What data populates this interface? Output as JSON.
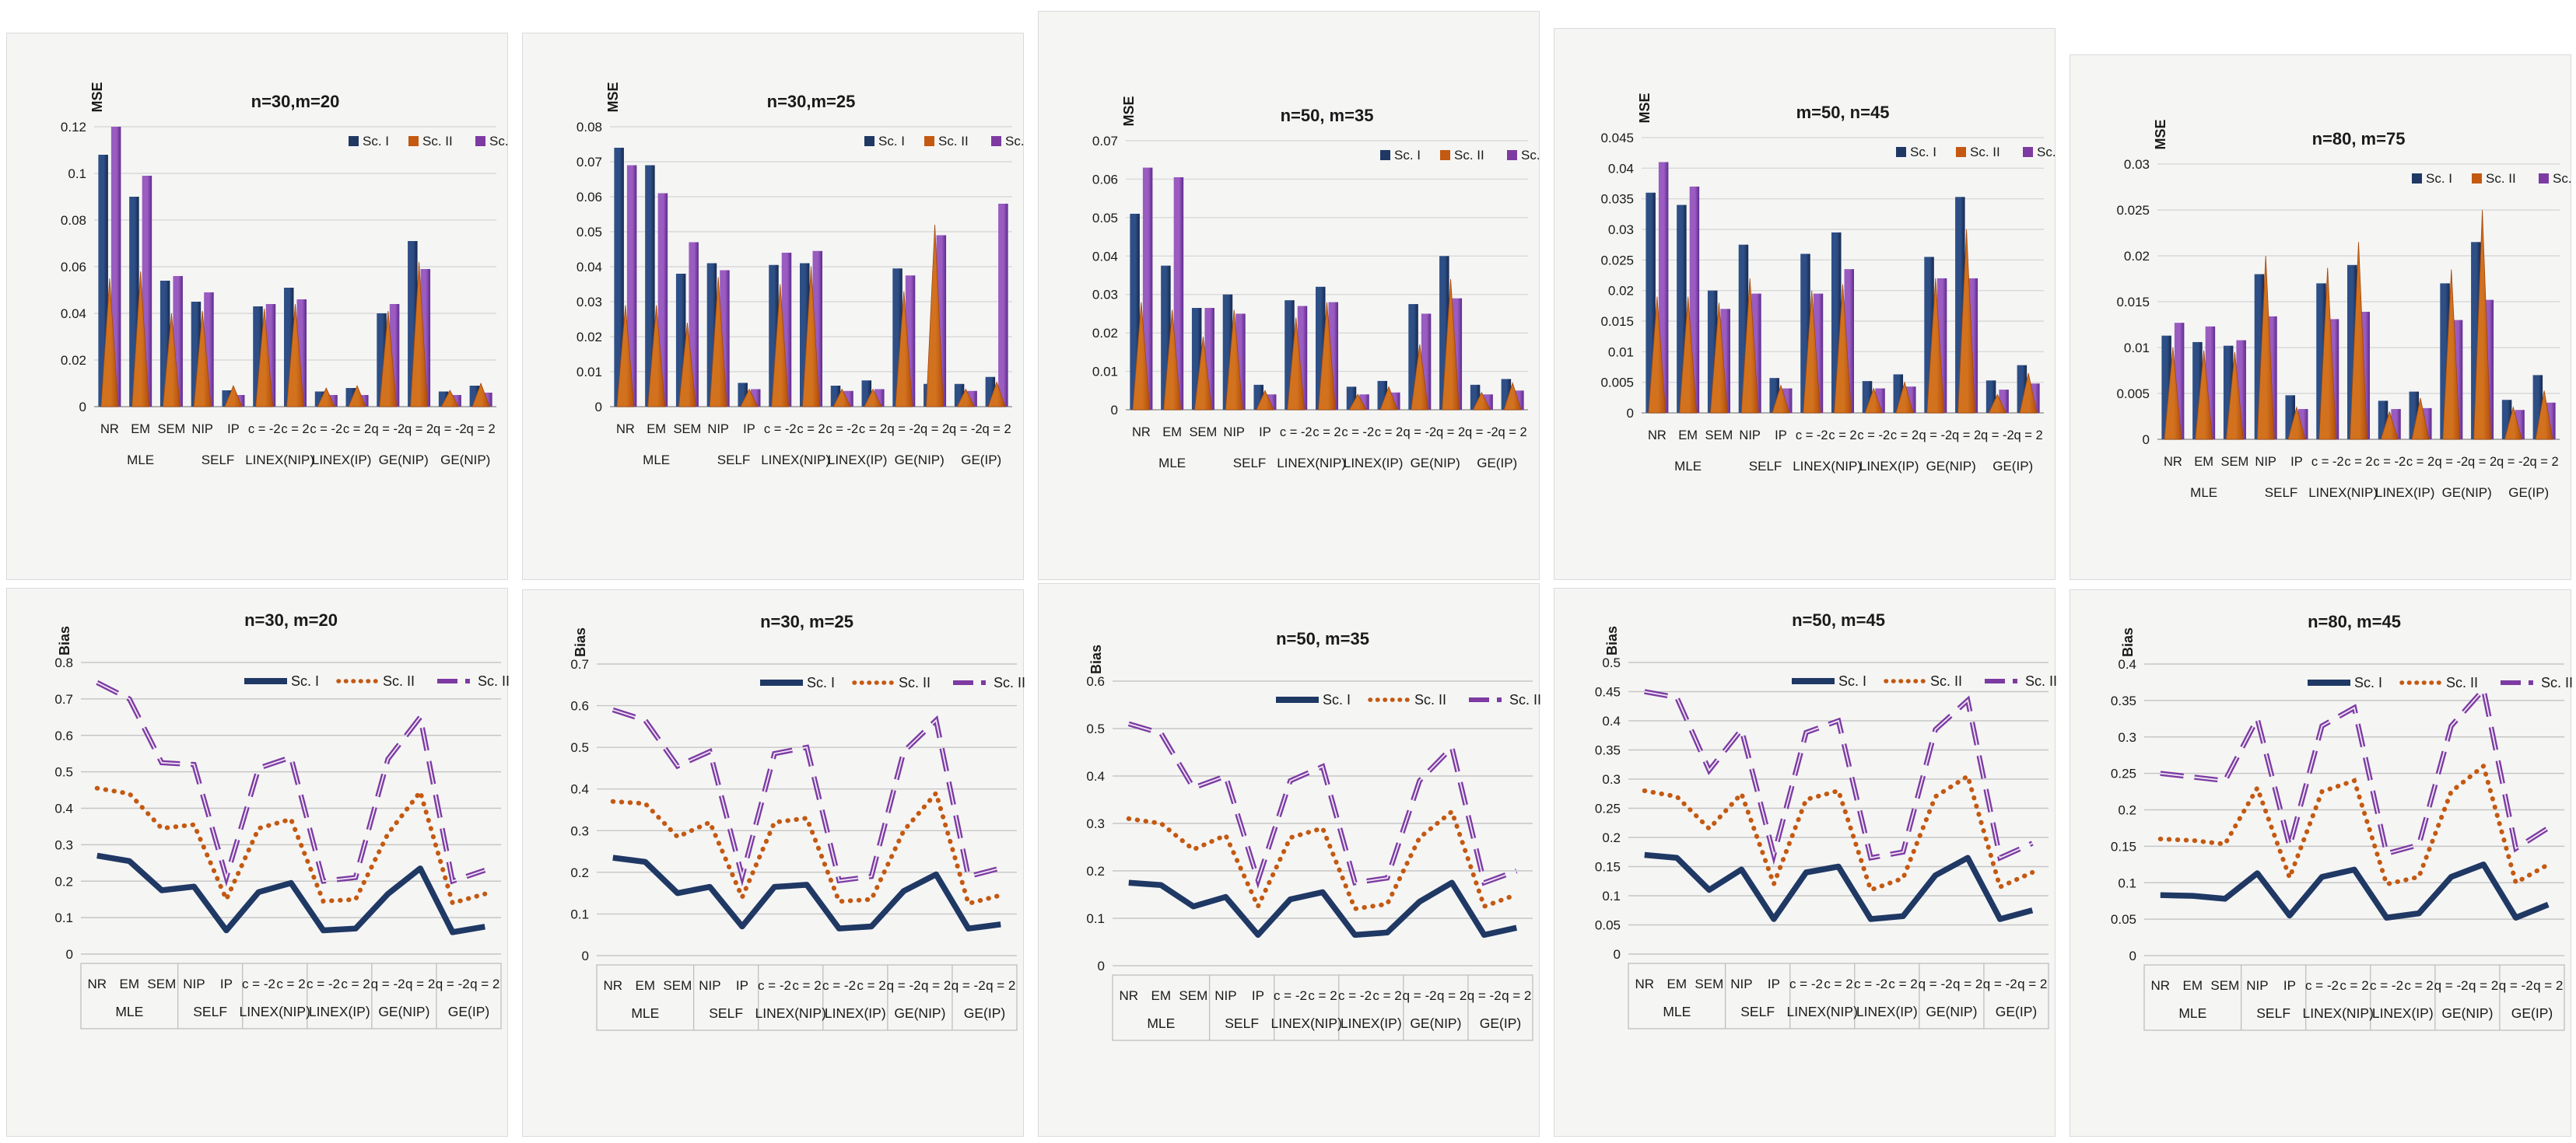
{
  "page_title": "MSE and Bias comparison charts",
  "colors": {
    "sc1_navy": "#1f3864",
    "sc2_orange": "#c45911",
    "sc3_purple": "#7d3ba2",
    "panel_bg": "#f5f5f4",
    "panel_border": "#dadada",
    "grid": "#d9d9d9",
    "grid_dark": "#c6c6c6",
    "axis_line": "#9a9a9a",
    "band_border": "#bfbfbf",
    "text": "#1a1a1a"
  },
  "legend": [
    "Sc. I",
    "Sc. II",
    "Sc. III"
  ],
  "categories": [
    "NR",
    "EM",
    "SEM",
    "NIP",
    "IP",
    "c = -2",
    "c = 2",
    "c = -2",
    "c = 2",
    "q = -2",
    "q = 2",
    "q = -2",
    "q = 2"
  ],
  "group_spans": [
    [
      0,
      2
    ],
    [
      3,
      4
    ],
    [
      5,
      6
    ],
    [
      7,
      8
    ],
    [
      9,
      10
    ],
    [
      11,
      12
    ]
  ],
  "chart_data": [
    {
      "type": "bar",
      "title": "n=30,m=20",
      "ylabel": "MSE",
      "ylim": [
        0,
        0.12
      ],
      "ystep": 0.02,
      "group_labels": [
        "MLE",
        "SELF",
        "LINEX(NIP)",
        "LINEX(IP)",
        "GE(NIP)",
        "GE(NIP)"
      ],
      "series": [
        {
          "name": "Sc. I",
          "values": [
            0.108,
            0.09,
            0.054,
            0.045,
            0.007,
            0.043,
            0.051,
            0.0065,
            0.008,
            0.04,
            0.071,
            0.0065,
            0.009
          ]
        },
        {
          "name": "Sc. II",
          "values": [
            0.055,
            0.058,
            0.04,
            0.041,
            0.009,
            0.042,
            0.044,
            0.008,
            0.009,
            0.041,
            0.062,
            0.007,
            0.01
          ]
        },
        {
          "name": "Sc. III",
          "values": [
            0.12,
            0.099,
            0.056,
            0.049,
            0.005,
            0.044,
            0.046,
            0.005,
            0.005,
            0.044,
            0.059,
            0.005,
            0.006
          ]
        }
      ]
    },
    {
      "type": "bar",
      "title": "n=30,m=25",
      "ylabel": "MSE",
      "ylim": [
        0,
        0.08
      ],
      "ystep": 0.01,
      "group_labels": [
        "MLE",
        "SELF",
        "LINEX(NIP)",
        "LINEX(IP)",
        "GE(NIP)",
        "GE(IP)"
      ],
      "series": [
        {
          "name": "Sc. I",
          "values": [
            0.074,
            0.069,
            0.038,
            0.041,
            0.0068,
            0.0405,
            0.041,
            0.006,
            0.0075,
            0.0395,
            0.0065,
            0.0065,
            0.0085
          ]
        },
        {
          "name": "Sc. II",
          "values": [
            0.029,
            0.029,
            0.024,
            0.037,
            0.005,
            0.035,
            0.04,
            0.005,
            0.005,
            0.033,
            0.052,
            0.005,
            0.007
          ]
        },
        {
          "name": "Sc. III",
          "values": [
            0.069,
            0.061,
            0.047,
            0.039,
            0.005,
            0.044,
            0.0445,
            0.0045,
            0.005,
            0.0375,
            0.049,
            0.0045,
            0.058
          ]
        }
      ]
    },
    {
      "type": "bar",
      "title": "n=50, m=35",
      "ylabel": "MSE",
      "ylim": [
        0,
        0.07
      ],
      "ystep": 0.01,
      "group_labels": [
        "MLE",
        "SELF",
        "LINEX(NIP)",
        "LINEX(IP)",
        "GE(NIP)",
        "GE(IP)"
      ],
      "series": [
        {
          "name": "Sc. I",
          "values": [
            0.051,
            0.0375,
            0.0265,
            0.03,
            0.0065,
            0.0285,
            0.032,
            0.006,
            0.0075,
            0.0275,
            0.04,
            0.0065,
            0.008
          ]
        },
        {
          "name": "Sc. II",
          "values": [
            0.028,
            0.026,
            0.019,
            0.026,
            0.005,
            0.024,
            0.028,
            0.004,
            0.006,
            0.017,
            0.034,
            0.0045,
            0.007
          ]
        },
        {
          "name": "Sc. III",
          "values": [
            0.063,
            0.0605,
            0.0265,
            0.025,
            0.004,
            0.027,
            0.028,
            0.004,
            0.0045,
            0.025,
            0.029,
            0.004,
            0.005
          ]
        }
      ]
    },
    {
      "type": "bar",
      "title": "m=50, n=45",
      "ylabel": "MSE",
      "ylim": [
        0,
        0.045
      ],
      "ystep": 0.005,
      "group_labels": [
        "MLE",
        "SELF",
        "LINEX(NIP)",
        "LINEX(IP)",
        "GE(NIP)",
        "GE(IP)"
      ],
      "series": [
        {
          "name": "Sc. I",
          "values": [
            0.036,
            0.034,
            0.02,
            0.0275,
            0.0057,
            0.026,
            0.0295,
            0.0052,
            0.0063,
            0.0255,
            0.0353,
            0.0053,
            0.0078
          ]
        },
        {
          "name": "Sc. II",
          "values": [
            0.019,
            0.019,
            0.018,
            0.022,
            0.0045,
            0.02,
            0.021,
            0.004,
            0.005,
            0.022,
            0.03,
            0.003,
            0.0065
          ]
        },
        {
          "name": "Sc. III",
          "values": [
            0.041,
            0.037,
            0.017,
            0.0195,
            0.004,
            0.0195,
            0.0235,
            0.004,
            0.0043,
            0.022,
            0.022,
            0.0038,
            0.0048
          ]
        }
      ]
    },
    {
      "type": "bar",
      "title": "n=80, m=75",
      "ylabel": "MSE",
      "ylim": [
        0,
        0.03
      ],
      "ystep": 0.005,
      "group_labels": [
        "MLE",
        "SELF",
        "LINEX(NIP)",
        "LINEX(IP)",
        "GE(NIP)",
        "GE(IP)"
      ],
      "series": [
        {
          "name": "Sc. I",
          "values": [
            0.0113,
            0.0106,
            0.0102,
            0.018,
            0.0048,
            0.017,
            0.019,
            0.0042,
            0.0052,
            0.017,
            0.0215,
            0.0043,
            0.007
          ]
        },
        {
          "name": "Sc. II",
          "values": [
            0.01,
            0.0097,
            0.0095,
            0.02,
            0.0035,
            0.0187,
            0.0215,
            0.003,
            0.0045,
            0.0185,
            0.025,
            0.0035,
            0.0053
          ]
        },
        {
          "name": "Sc. III",
          "values": [
            0.0127,
            0.0123,
            0.0108,
            0.0134,
            0.0033,
            0.0131,
            0.0139,
            0.0033,
            0.0034,
            0.013,
            0.0152,
            0.0032,
            0.004
          ]
        }
      ]
    },
    {
      "type": "line",
      "title": "n=30, m=20",
      "ylabel": "Bias",
      "ylim": [
        0,
        0.8
      ],
      "ystep": 0.1,
      "group_labels": [
        "MLE",
        "SELF",
        "LINEX(NIP)",
        "LINEX(IP)",
        "GE(NIP)",
        "GE(IP)"
      ],
      "series": [
        {
          "name": "Sc. I",
          "values": [
            0.27,
            0.255,
            0.175,
            0.185,
            0.065,
            0.17,
            0.195,
            0.065,
            0.07,
            0.165,
            0.235,
            0.06,
            0.075
          ]
        },
        {
          "name": "Sc. II",
          "values": [
            0.455,
            0.44,
            0.345,
            0.355,
            0.15,
            0.345,
            0.37,
            0.145,
            0.15,
            0.33,
            0.445,
            0.14,
            0.165
          ]
        },
        {
          "name": "Sc. III",
          "values": [
            0.745,
            0.7,
            0.525,
            0.52,
            0.21,
            0.51,
            0.54,
            0.2,
            0.21,
            0.535,
            0.65,
            0.2,
            0.23
          ]
        }
      ]
    },
    {
      "type": "line",
      "title": "n=30, m=25",
      "ylabel": "Bias",
      "ylim": [
        0,
        0.7
      ],
      "ystep": 0.1,
      "group_labels": [
        "MLE",
        "SELF",
        "LINEX(NIP)",
        "LINEX(IP)",
        "GE(NIP)",
        "GE(IP)"
      ],
      "series": [
        {
          "name": "Sc. I",
          "values": [
            0.235,
            0.225,
            0.15,
            0.165,
            0.07,
            0.165,
            0.17,
            0.065,
            0.07,
            0.155,
            0.195,
            0.065,
            0.075
          ]
        },
        {
          "name": "Sc. II",
          "values": [
            0.37,
            0.365,
            0.285,
            0.32,
            0.14,
            0.32,
            0.33,
            0.13,
            0.135,
            0.3,
            0.39,
            0.125,
            0.145
          ]
        },
        {
          "name": "Sc. III",
          "values": [
            0.59,
            0.565,
            0.455,
            0.49,
            0.19,
            0.485,
            0.5,
            0.18,
            0.19,
            0.49,
            0.565,
            0.19,
            0.21
          ]
        }
      ]
    },
    {
      "type": "line",
      "title": "n=50, m=35",
      "ylabel": "Bias",
      "ylim": [
        0,
        0.6
      ],
      "ystep": 0.1,
      "group_labels": [
        "MLE",
        "SELF",
        "LINEX(NIP)",
        "LINEX(IP)",
        "GE(NIP)",
        "GE(IP)"
      ],
      "series": [
        {
          "name": "Sc. I",
          "values": [
            0.175,
            0.17,
            0.125,
            0.145,
            0.065,
            0.14,
            0.155,
            0.065,
            0.07,
            0.135,
            0.175,
            0.065,
            0.08
          ]
        },
        {
          "name": "Sc. II",
          "values": [
            0.31,
            0.3,
            0.245,
            0.275,
            0.125,
            0.27,
            0.29,
            0.12,
            0.13,
            0.27,
            0.325,
            0.125,
            0.15
          ]
        },
        {
          "name": "Sc. III",
          "values": [
            0.51,
            0.49,
            0.375,
            0.4,
            0.18,
            0.39,
            0.42,
            0.175,
            0.185,
            0.39,
            0.46,
            0.175,
            0.2
          ]
        }
      ]
    },
    {
      "type": "line",
      "title": "n=50, m=45",
      "ylabel": "Bias",
      "ylim": [
        0,
        0.5
      ],
      "ystep": 0.05,
      "group_labels": [
        "MLE",
        "SELF",
        "LINEX(NIP)",
        "LINEX(IP)",
        "GE(NIP)",
        "GE(IP)"
      ],
      "series": [
        {
          "name": "Sc. I",
          "values": [
            0.17,
            0.165,
            0.11,
            0.145,
            0.06,
            0.14,
            0.15,
            0.06,
            0.065,
            0.135,
            0.165,
            0.06,
            0.075
          ]
        },
        {
          "name": "Sc. II",
          "values": [
            0.28,
            0.27,
            0.215,
            0.275,
            0.12,
            0.265,
            0.28,
            0.11,
            0.13,
            0.27,
            0.305,
            0.115,
            0.14
          ]
        },
        {
          "name": "Sc. III",
          "values": [
            0.45,
            0.44,
            0.315,
            0.385,
            0.17,
            0.38,
            0.4,
            0.165,
            0.175,
            0.385,
            0.435,
            0.165,
            0.19
          ]
        }
      ]
    },
    {
      "type": "line",
      "title": "n=80, m=45",
      "ylabel": "Bias",
      "ylim": [
        0,
        0.4
      ],
      "ystep": 0.05,
      "group_labels": [
        "MLE",
        "SELF",
        "LINEX(NIP)",
        "LINEX(IP)",
        "GE(NIP)",
        "GE(IP)"
      ],
      "series": [
        {
          "name": "Sc. I",
          "values": [
            0.083,
            0.082,
            0.078,
            0.113,
            0.055,
            0.108,
            0.118,
            0.052,
            0.058,
            0.108,
            0.125,
            0.052,
            0.07
          ]
        },
        {
          "name": "Sc. II",
          "values": [
            0.16,
            0.158,
            0.153,
            0.23,
            0.107,
            0.225,
            0.24,
            0.098,
            0.108,
            0.225,
            0.26,
            0.1,
            0.125
          ]
        },
        {
          "name": "Sc. III",
          "values": [
            0.25,
            0.245,
            0.24,
            0.325,
            0.15,
            0.315,
            0.34,
            0.14,
            0.152,
            0.315,
            0.365,
            0.147,
            0.175
          ]
        }
      ]
    }
  ]
}
